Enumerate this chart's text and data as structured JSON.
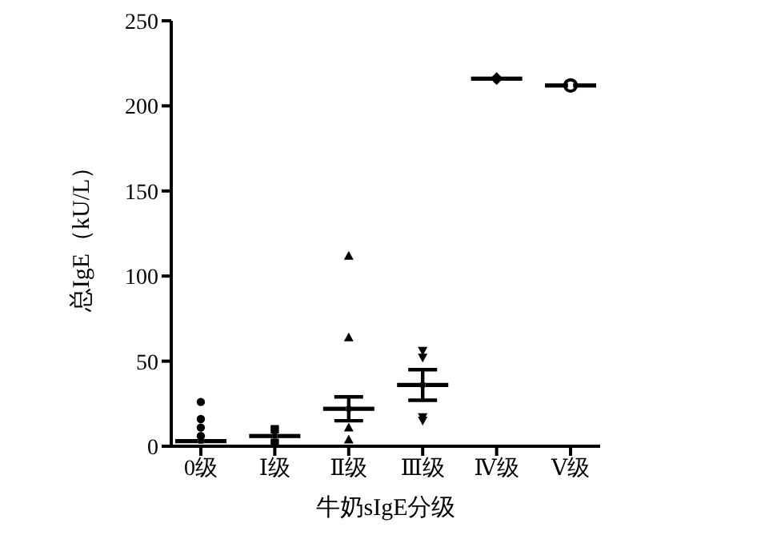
{
  "chart_data": {
    "type": "scatter",
    "xlabel": "牛奶sIgE分级",
    "ylabel": "总IgE（kU/L）",
    "categories": [
      "0级",
      "Ⅰ级",
      "Ⅱ级",
      "Ⅲ级",
      "Ⅳ级",
      "Ⅴ级"
    ],
    "ylim": [
      0,
      250
    ],
    "yticks": [
      0,
      50,
      100,
      150,
      200,
      250
    ],
    "grid": false,
    "series": [
      {
        "color": "#000000",
        "marker": "circle",
        "x": [
          "0级",
          "0级",
          "0级",
          "0级"
        ],
        "values": [
          26,
          16,
          11,
          6
        ]
      },
      {
        "color": "#000000",
        "marker": "square",
        "x": [
          "Ⅰ级",
          "Ⅰ级"
        ],
        "values": [
          10,
          2
        ]
      },
      {
        "color": "#000000",
        "marker": "triangle",
        "x": [
          "Ⅱ级",
          "Ⅱ级",
          "Ⅱ级",
          "Ⅱ级"
        ],
        "values": [
          112,
          64,
          11,
          4
        ]
      },
      {
        "color": "#000000",
        "marker": "triangle-down",
        "x": [
          "Ⅲ级",
          "Ⅲ级",
          "Ⅲ级",
          "Ⅲ级"
        ],
        "values": [
          52,
          56,
          15,
          17
        ]
      },
      {
        "color": "#000000",
        "marker": "diamond",
        "x": [
          "Ⅳ级"
        ],
        "values": [
          216
        ],
        "errors": [
          null
        ]
      },
      {
        "color": "#000000",
        "marker": "circle-open",
        "x": [
          "Ⅴ级"
        ],
        "values": [
          212
        ],
        "errors": [
          null
        ]
      },
      {
        "color": "#000000",
        "marker": "square",
        "values": [
          3,
          6,
          22,
          36,
          null,
          null
        ],
        "errors": [
          null,
          null,
          7,
          9,
          null,
          null
        ]
      }
    ]
  }
}
